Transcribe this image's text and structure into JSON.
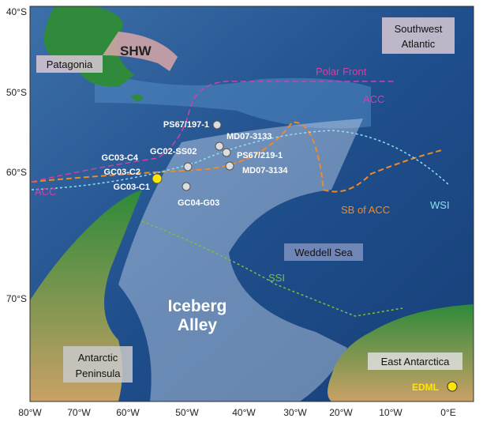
{
  "axes": {
    "lat_labels": [
      "40°S",
      "50°S",
      "60°S",
      "70°S"
    ],
    "lon_labels": [
      "80°W",
      "70°W",
      "60°W",
      "50°W",
      "40°W",
      "30°W",
      "20°W",
      "10°W",
      "0°E"
    ]
  },
  "labels": {
    "patagonia": "Patagonia",
    "shw": "SHW",
    "southwest_atlantic": [
      "Southwest",
      "Atlantic"
    ],
    "polar_front": "Polar Front",
    "acc_east": "ACC",
    "acc_west": "ACC",
    "sb_acc": "SB of ACC",
    "wsi": "WSI",
    "weddell_sea": "Weddell Sea",
    "ssi": "SSI",
    "iceberg_alley": [
      "Iceberg",
      "Alley"
    ],
    "antarctic_peninsula": [
      "Antarctic",
      "Peninsula"
    ],
    "east_antarctica": "East Antarctica",
    "edml": "EDML"
  },
  "sites": [
    "PS67/197-1",
    "MD07-3133",
    "GC03-C4",
    "GC02-SS02",
    "PS67/219-1",
    "GC03-C2",
    "MD07-3134",
    "GC03-C1",
    "GC04-G03"
  ]
}
